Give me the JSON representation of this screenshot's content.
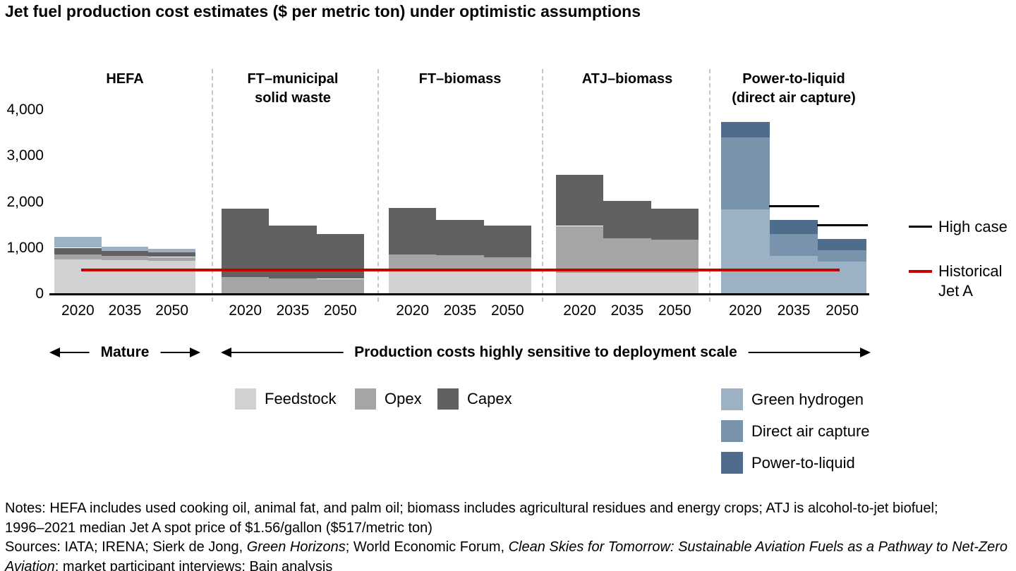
{
  "title": "Jet fuel production cost estimates ($ per metric ton) under optimistic assumptions",
  "annotations": {
    "mature": "Mature",
    "scale": "Production costs highly sensitive to deployment scale"
  },
  "colors": {
    "feedstock": "#d2d2d2",
    "opex": "#a5a5a5",
    "capex": "#616161",
    "green_hydrogen": "#9db1c4",
    "direct_air_capture": "#7a93ac",
    "power_to_liquid": "#4e6c8c",
    "historical": "#c40000",
    "high_case": "#000000"
  },
  "legend_gray": [
    {
      "key": "feedstock",
      "label": "Feedstock"
    },
    {
      "key": "opex",
      "label": "Opex"
    },
    {
      "key": "capex",
      "label": "Capex"
    }
  ],
  "legend_blue": [
    {
      "key": "green_hydrogen",
      "label": "Green hydrogen"
    },
    {
      "key": "direct_air_capture",
      "label": "Direct air capture"
    },
    {
      "key": "power_to_liquid",
      "label": "Power-to-liquid"
    }
  ],
  "right_legend": [
    {
      "key": "high_case",
      "label": "High case"
    },
    {
      "key": "historical",
      "lines": [
        "Historical",
        "Jet A"
      ]
    }
  ],
  "chart_data": {
    "type": "bar",
    "stacked": true,
    "title": "Jet fuel production cost estimates ($ per metric ton) under optimistic assumptions",
    "unit": "$ per metric ton",
    "ylim": [
      0,
      4000
    ],
    "tick_values": [
      0,
      1000,
      2000,
      3000,
      4000
    ],
    "tick_labels": [
      "0",
      "1,000",
      "2,000",
      "3,000",
      "4,000"
    ],
    "years": [
      "2020",
      "2035",
      "2050"
    ],
    "reference_line": {
      "label": "Historical Jet A",
      "value": 517
    },
    "panels": [
      {
        "name": "HEFA",
        "header": [
          "HEFA"
        ],
        "series": [
          {
            "key": "feedstock",
            "values": [
              750,
              730,
              720
            ]
          },
          {
            "key": "opex",
            "values": [
              115,
              100,
              85
            ]
          },
          {
            "key": "capex",
            "values": [
              140,
              105,
              95
            ]
          },
          {
            "key": "green_hydrogen",
            "values": [
              240,
              100,
              75
            ]
          }
        ]
      },
      {
        "name": "FT–municipal solid waste",
        "header": [
          "FT–municipal",
          "solid waste"
        ],
        "series": [
          {
            "key": "feedstock",
            "values": [
              0,
              0,
              0
            ]
          },
          {
            "key": "opex",
            "values": [
              375,
              340,
              330
            ]
          },
          {
            "key": "capex",
            "values": [
              1480,
              1150,
              980
            ]
          }
        ]
      },
      {
        "name": "FT–biomass",
        "header": [
          "FT–biomass"
        ],
        "series": [
          {
            "key": "feedstock",
            "values": [
              550,
              540,
              530
            ]
          },
          {
            "key": "opex",
            "values": [
              315,
              300,
              275
            ]
          },
          {
            "key": "capex",
            "values": [
              1005,
              775,
              685
            ]
          }
        ]
      },
      {
        "name": "ATJ–biomass",
        "header": [
          "ATJ–biomass"
        ],
        "series": [
          {
            "key": "feedstock",
            "values": [
              465,
              465,
              465
            ]
          },
          {
            "key": "opex",
            "values": [
              1015,
              755,
              715
            ]
          },
          {
            "key": "capex",
            "values": [
              1110,
              805,
              680
            ]
          }
        ]
      },
      {
        "name": "Power-to-liquid (direct air capture)",
        "header": [
          "Power-to-liquid",
          "(direct air capture)"
        ],
        "series": [
          {
            "key": "green_hydrogen",
            "values": [
              1845,
              835,
              710
            ]
          },
          {
            "key": "direct_air_capture",
            "values": [
              1555,
              475,
              240
            ]
          },
          {
            "key": "power_to_liquid",
            "values": [
              340,
              295,
              240
            ]
          }
        ],
        "high_case": [
          null,
          1910,
          1490
        ]
      }
    ]
  },
  "notes": [
    {
      "runs": [
        {
          "t": "Notes: HEFA includes used cooking oil, animal fat, and palm oil; biomass includes agricultural residues and energy crops; ATJ is alcohol-to-jet biofuel;"
        }
      ]
    },
    {
      "runs": [
        {
          "t": "1996–2021 median Jet A spot price of $1.56/gallon ($517/metric ton)"
        }
      ]
    },
    {
      "runs": [
        {
          "t": "Sources: IATA; IRENA; Sierk de Jong, "
        },
        {
          "t": "Green Horizons",
          "i": true
        },
        {
          "t": "; World Economic Forum, "
        },
        {
          "t": "Clean Skies for Tomorrow: Sustainable Aviation Fuels as a Pathway to Net-Zero",
          "i": true
        }
      ]
    },
    {
      "runs": [
        {
          "t": "Aviation",
          "i": true
        },
        {
          "t": "; market participant interviews; Bain analysis"
        }
      ]
    }
  ]
}
